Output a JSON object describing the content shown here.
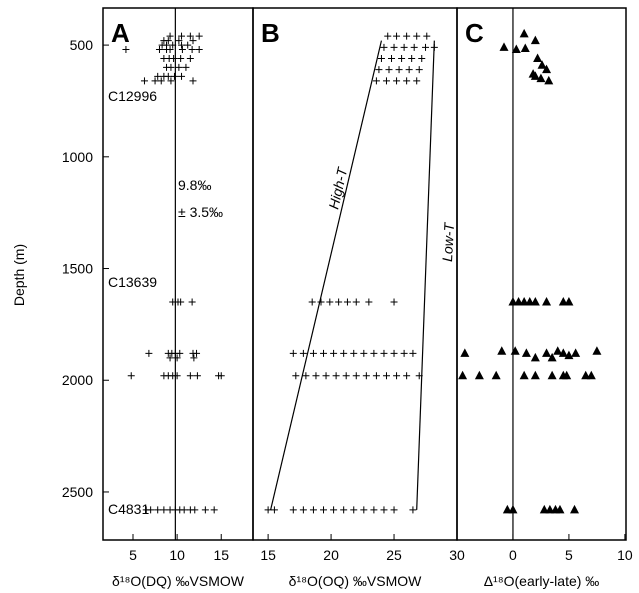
{
  "chart_data": [
    {
      "type": "scatter",
      "title": "A",
      "marker": "plus",
      "xlabel": "δ¹⁸O(DQ) ‰VSMOW",
      "ylabel": "Depth (m)",
      "xlim": [
        1.6,
        18.6
      ],
      "xticks": [
        5,
        10,
        15
      ],
      "ylim": [
        334,
        2715
      ],
      "yticks": [
        500,
        1000,
        1500,
        2000,
        2500
      ],
      "y_inverted": true,
      "annotations": [
        "C12996",
        "C13639",
        "C4831",
        "9.8‰",
        "± 3.5‰"
      ],
      "lines": [
        {
          "x": [
            9.8,
            9.8
          ],
          "y": [
            334,
            2715
          ]
        }
      ],
      "x": [
        9.2,
        10.5,
        11.5,
        12.5,
        8.5,
        9.0,
        10.2,
        11.8,
        8.3,
        8.8,
        9.5,
        10.5,
        11.2,
        4.2,
        8.0,
        8.8,
        9.2,
        10.6,
        11.7,
        12.5,
        8.5,
        9.1,
        9.6,
        10.4,
        11.5,
        8.8,
        9.3,
        10.2,
        11.0,
        7.8,
        8.5,
        9.0,
        9.7,
        10.5,
        6.3,
        7.5,
        8.2,
        9.3,
        11.8,
        9.5,
        9.8,
        10.1,
        10.4,
        11.7,
        6.8,
        9.0,
        9.4,
        9.8,
        10.3,
        11.8,
        12.2,
        9.2,
        10.0,
        11.9,
        4.8,
        8.5,
        9.0,
        9.5,
        10.0,
        11.5,
        12.3,
        14.7,
        15.0,
        6.5,
        7.0,
        7.8,
        8.5,
        9.2,
        9.8,
        10.3,
        10.8,
        11.5,
        12.0,
        13.2,
        14.2
      ],
      "values": [
        460,
        460,
        460,
        460,
        480,
        480,
        480,
        480,
        500,
        500,
        500,
        500,
        500,
        520,
        520,
        520,
        520,
        520,
        520,
        520,
        560,
        560,
        560,
        560,
        560,
        600,
        600,
        600,
        600,
        640,
        640,
        640,
        640,
        640,
        660,
        660,
        660,
        660,
        660,
        1650,
        1650,
        1650,
        1650,
        1650,
        1880,
        1880,
        1880,
        1880,
        1880,
        1880,
        1880,
        1900,
        1900,
        1900,
        1980,
        1980,
        1980,
        1980,
        1980,
        1980,
        1980,
        1980,
        1980,
        2580,
        2580,
        2580,
        2580,
        2580,
        2580,
        2580,
        2580,
        2580,
        2580,
        2580,
        2580
      ]
    },
    {
      "type": "scatter",
      "title": "B",
      "marker": "plus",
      "xlabel": "δ¹⁸O(OQ) ‰VSMOW",
      "xlim": [
        13.8,
        30
      ],
      "xticks": [
        15,
        20,
        25,
        30
      ],
      "annotations": [
        "High-T",
        "Low-T"
      ],
      "lines": [
        {
          "x": [
            15.2,
            24.0
          ],
          "y": [
            2580,
            480
          ]
        },
        {
          "x": [
            26.8,
            28.2
          ],
          "y": [
            2580,
            480
          ]
        }
      ],
      "x": [
        24.5,
        25.2,
        26.0,
        26.8,
        27.6,
        24.2,
        25.0,
        25.8,
        26.6,
        27.5,
        28.2,
        24.0,
        24.8,
        25.6,
        26.4,
        27.2,
        23.8,
        24.6,
        25.4,
        26.2,
        27.0,
        23.6,
        24.4,
        25.2,
        26.0,
        26.8,
        18.5,
        19.2,
        19.9,
        20.6,
        21.3,
        22.0,
        23.0,
        25.0,
        17.0,
        17.8,
        18.6,
        19.4,
        20.2,
        21.0,
        21.8,
        22.6,
        23.4,
        24.2,
        25.0,
        25.8,
        26.5,
        17.2,
        18.0,
        18.8,
        19.6,
        20.4,
        21.2,
        22.0,
        22.8,
        23.6,
        24.4,
        25.2,
        26.0,
        27.0,
        15.0,
        15.5,
        17.0,
        17.8,
        18.6,
        19.4,
        20.2,
        21.0,
        21.8,
        22.6,
        23.4,
        24.2,
        25.0,
        26.5
      ],
      "values": [
        460,
        460,
        460,
        460,
        460,
        510,
        510,
        510,
        510,
        510,
        510,
        560,
        560,
        560,
        560,
        560,
        610,
        610,
        610,
        610,
        610,
        660,
        660,
        660,
        660,
        660,
        1650,
        1650,
        1650,
        1650,
        1650,
        1650,
        1650,
        1650,
        1880,
        1880,
        1880,
        1880,
        1880,
        1880,
        1880,
        1880,
        1880,
        1880,
        1880,
        1880,
        1880,
        1980,
        1980,
        1980,
        1980,
        1980,
        1980,
        1980,
        1980,
        1980,
        1980,
        1980,
        1980,
        1980,
        2580,
        2580,
        2580,
        2580,
        2580,
        2580,
        2580,
        2580,
        2580,
        2580,
        2580,
        2580,
        2580,
        2580
      ]
    },
    {
      "type": "scatter",
      "title": "C",
      "marker": "triangle",
      "xlabel": "Δ¹⁸O(early-late) ‰",
      "xlim": [
        -5,
        10.1
      ],
      "xticks": [
        0,
        5,
        10
      ],
      "lines": [
        {
          "x": [
            0,
            0
          ],
          "y": [
            334,
            2715
          ]
        }
      ],
      "x": [
        1.0,
        2.0,
        -0.8,
        0.3,
        1.1,
        2.2,
        2.6,
        3.0,
        2.0,
        2.5,
        3.2,
        1.8,
        0,
        0.5,
        1.0,
        1.5,
        2.0,
        3.0,
        4.5,
        5.0,
        -4.3,
        -1.0,
        0.2,
        1.2,
        3.0,
        4.0,
        4.5,
        5.0,
        5.6,
        7.5,
        2.0,
        3.5,
        -4.5,
        -3.0,
        -1.5,
        1.0,
        2.0,
        3.5,
        4.5,
        4.8,
        6.5,
        7.0,
        -0.5,
        0,
        2.8,
        3.3,
        3.8,
        4.2,
        5.5
      ],
      "values": [
        450,
        480,
        510,
        520,
        515,
        560,
        590,
        610,
        640,
        650,
        660,
        630,
        1650,
        1650,
        1650,
        1650,
        1650,
        1650,
        1650,
        1650,
        1880,
        1870,
        1870,
        1880,
        1880,
        1870,
        1880,
        1890,
        1880,
        1870,
        1900,
        1900,
        1980,
        1980,
        1980,
        1980,
        1980,
        1980,
        1980,
        1980,
        1980,
        1980,
        2580,
        2580,
        2580,
        2580,
        2580,
        2580,
        2580
      ]
    }
  ]
}
